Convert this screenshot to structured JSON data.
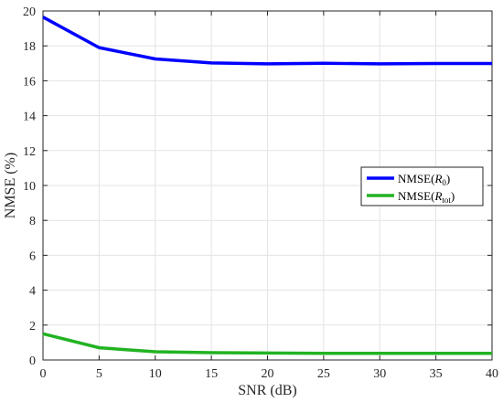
{
  "chart_data": {
    "type": "line",
    "xlabel": "SNR (dB)",
    "ylabel": "NMSE (%)",
    "xlim": [
      0,
      40
    ],
    "ylim": [
      0,
      20
    ],
    "xticks": [
      0,
      5,
      10,
      15,
      20,
      25,
      30,
      35,
      40
    ],
    "yticks": [
      0,
      2,
      4,
      6,
      8,
      10,
      12,
      14,
      16,
      18,
      20
    ],
    "grid": true,
    "legend_position": "right",
    "x": [
      0,
      5,
      10,
      15,
      20,
      25,
      30,
      35,
      40
    ],
    "series": [
      {
        "name": "NMSE(",
        "math": "R",
        "sub": "0",
        "suffix": ")",
        "color": "#0000ff",
        "values": [
          19.65,
          17.9,
          17.25,
          17.02,
          16.97,
          17.0,
          16.97,
          16.99,
          16.99
        ]
      },
      {
        "name": "NMSE(",
        "math": "R",
        "sub": "tot",
        "suffix": ")",
        "color": "#22b322",
        "values": [
          1.5,
          0.7,
          0.47,
          0.42,
          0.4,
          0.38,
          0.38,
          0.38,
          0.38
        ]
      }
    ]
  }
}
